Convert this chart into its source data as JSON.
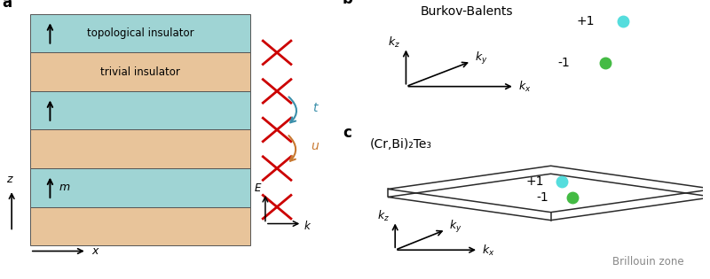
{
  "fig_width": 8.0,
  "fig_height": 3.15,
  "dpi": 100,
  "bg_color": "#ffffff",
  "topo_color": "#9fd4d4",
  "trivial_color": "#e8c49a",
  "x_color": "#cc0000",
  "cyan_dot_color": "#55dddd",
  "green_dot_color": "#44bb44",
  "arrow_t_color": "#3a8faa",
  "arrow_u_color": "#c87830",
  "panel_a_label": "a",
  "panel_b_label": "b",
  "panel_c_label": "c",
  "burkov_title": "Burkov-Balents",
  "crbi_title": "(Cr,Bi)₂Te₃",
  "brillouin_label": "Brillouin zone"
}
